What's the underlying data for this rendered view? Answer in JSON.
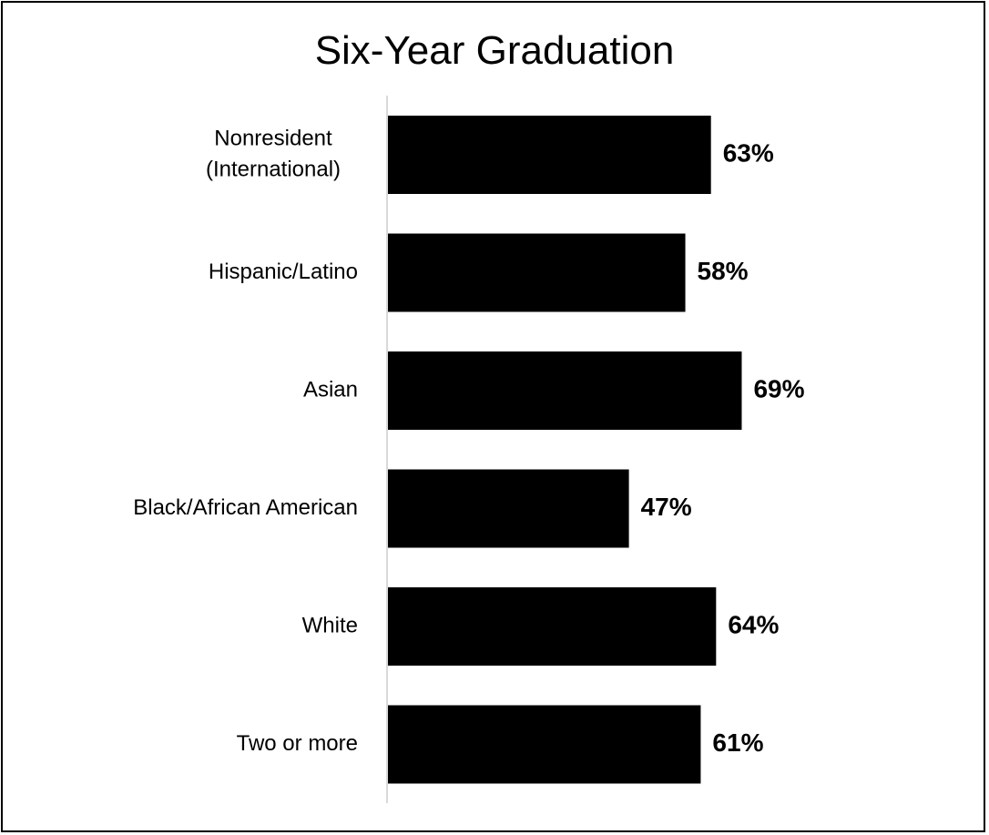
{
  "chart_data": {
    "type": "bar",
    "orientation": "horizontal",
    "title": "Six-Year Graduation",
    "xlabel": "",
    "ylabel": "",
    "categories": [
      [
        "Nonresident",
        "(International)"
      ],
      [
        "Hispanic/Latino"
      ],
      [
        "Asian"
      ],
      [
        "Black/African American"
      ],
      [
        "White"
      ],
      [
        "Two or more"
      ]
    ],
    "values": [
      63,
      58,
      69,
      47,
      64,
      61
    ],
    "value_labels": [
      "63%",
      "58%",
      "69%",
      "47%",
      "64%",
      "61%"
    ],
    "xlim": [
      0,
      100
    ],
    "grid": false,
    "legend": "none",
    "colors": {
      "bar": "#000000",
      "axis": "#d9d9d9",
      "text": "#000000"
    }
  }
}
